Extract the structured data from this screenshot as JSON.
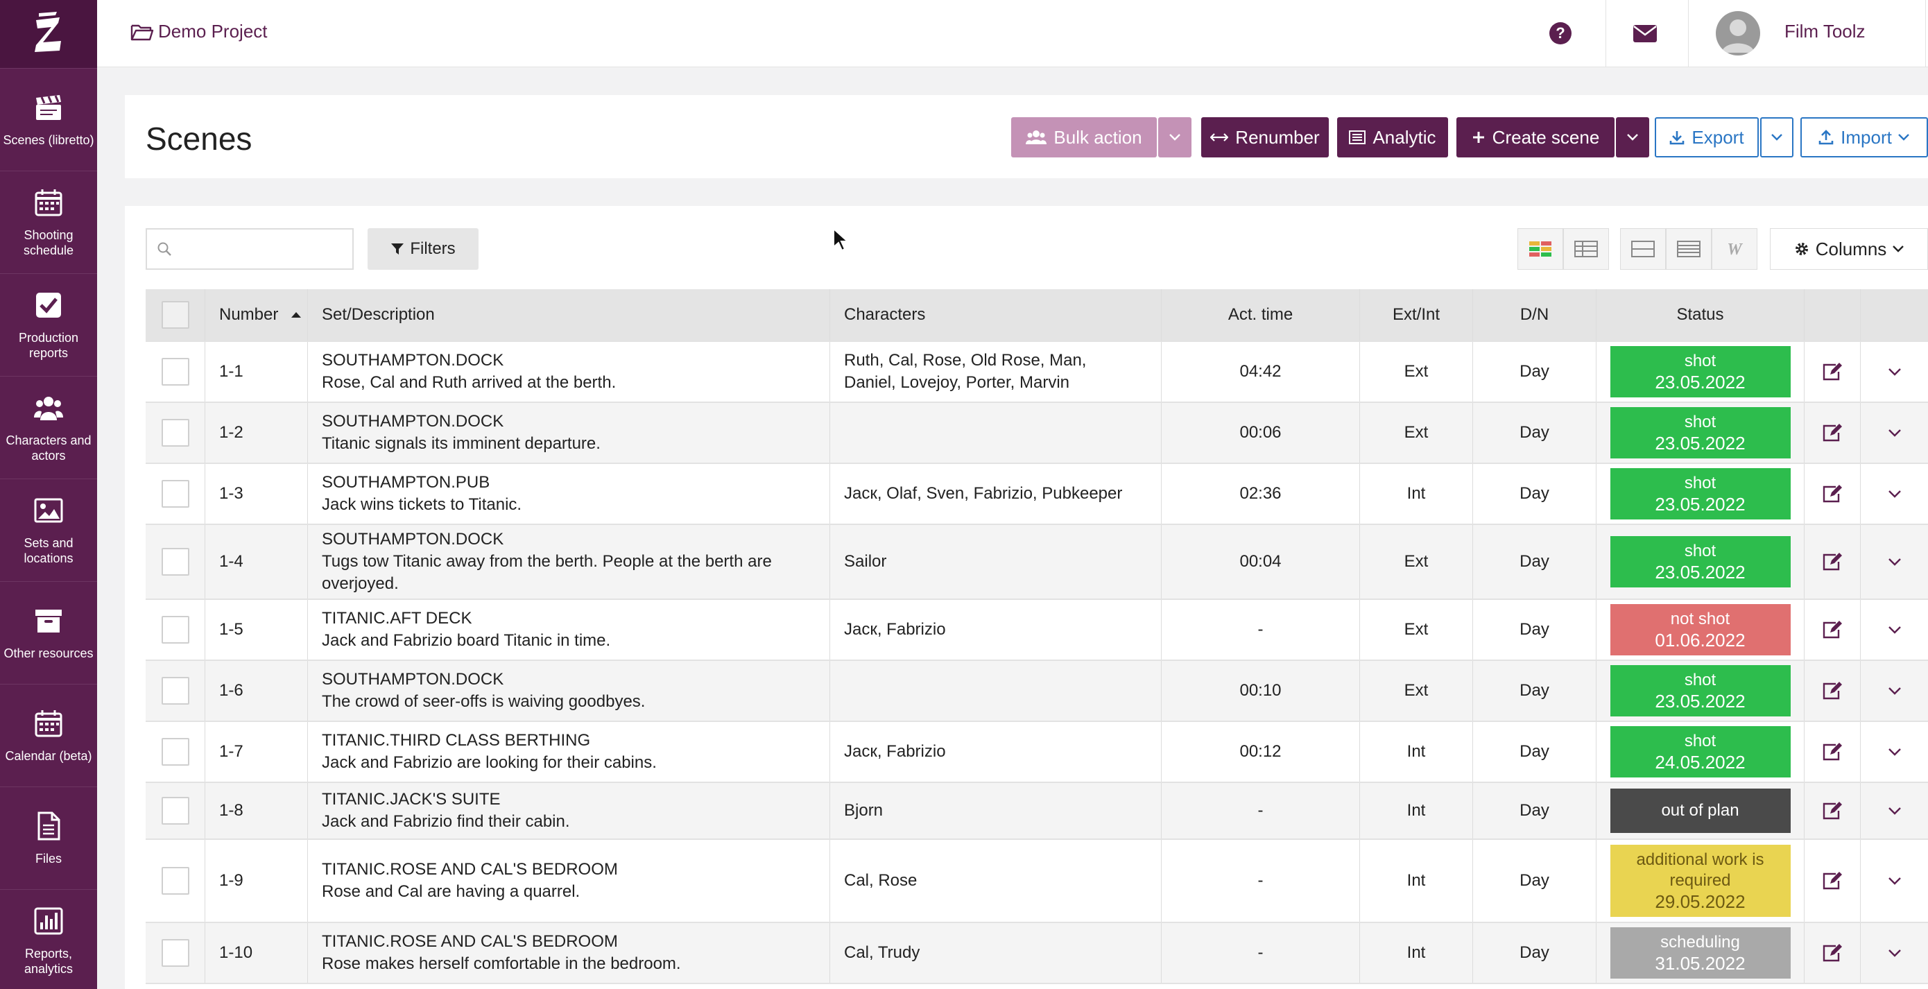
{
  "app": {
    "project_name": "Demo Project",
    "user_name": "Film Toolz",
    "accent": "#5b1f4f"
  },
  "sidebar": {
    "items": [
      {
        "label": "Scenes (libretto)",
        "icon": "clapperboard-icon"
      },
      {
        "label": "Shooting schedule",
        "icon": "calendar-icon"
      },
      {
        "label": "Production reports",
        "icon": "checkbox-icon"
      },
      {
        "label": "Characters and actors",
        "icon": "users-icon"
      },
      {
        "label": "Sets and locations",
        "icon": "image-icon"
      },
      {
        "label": "Other resources",
        "icon": "archive-icon"
      },
      {
        "label": "Calendar (beta)",
        "icon": "calendar-icon"
      },
      {
        "label": "Files",
        "icon": "file-icon"
      },
      {
        "label": "Reports, analytics",
        "icon": "bar-chart-icon"
      }
    ]
  },
  "page": {
    "title": "Scenes",
    "buttons": {
      "bulk_action": "Bulk action",
      "renumber": "Renumber",
      "analytic": "Analytic",
      "create_scene": "Create scene",
      "export": "Export",
      "import": "Import"
    },
    "search_placeholder": "",
    "filters_label": "Filters",
    "columns_label": "Columns"
  },
  "table": {
    "headers": {
      "number": "Number",
      "set": "Set/Description",
      "characters": "Characters",
      "act_time": "Act. time",
      "ext_int": "Ext/Int",
      "dn": "D/N",
      "status": "Status"
    },
    "rows": [
      {
        "number": "1-1",
        "set": "SOUTHAMPTON.DOCK",
        "desc": "Rose, Cal and Ruth arrived at the berth.",
        "characters": "Ruth, Cal, Rose, Old Rose, Man, Daniel, Lovejoy, Porter, Marvin",
        "time": "04:42",
        "ext": "Ext",
        "dn": "Day",
        "status": "shot",
        "date": "23.05.2022",
        "kind": "shot"
      },
      {
        "number": "1-2",
        "set": "SOUTHAMPTON.DOCK",
        "desc": "Titanic signals its imminent departure.",
        "characters": "",
        "time": "00:06",
        "ext": "Ext",
        "dn": "Day",
        "status": "shot",
        "date": "23.05.2022",
        "kind": "shot"
      },
      {
        "number": "1-3",
        "set": "SOUTHAMPTON.PUB",
        "desc": "Jack wins tickets to Titanic.",
        "characters": "Jacк, Olaf, Sven, Fabrizio, Pubkeeper",
        "time": "02:36",
        "ext": "Int",
        "dn": "Day",
        "status": "shot",
        "date": "23.05.2022",
        "kind": "shot"
      },
      {
        "number": "1-4",
        "set": "SOUTHAMPTON.DOCK",
        "desc": "Tugs tow Titanic away from the berth. People at the berth are overjoyed.",
        "characters": "Sailor",
        "time": "00:04",
        "ext": "Ext",
        "dn": "Day",
        "status": "shot",
        "date": "23.05.2022",
        "kind": "shot"
      },
      {
        "number": "1-5",
        "set": "TITANIC.AFT DECK",
        "desc": "Jack and Fabrizio board Titanic in time.",
        "characters": "Jacк, Fabrizio",
        "time": "-",
        "ext": "Ext",
        "dn": "Day",
        "status": "not shot",
        "date": "01.06.2022",
        "kind": "notshot"
      },
      {
        "number": "1-6",
        "set": "SOUTHAMPTON.DOCK",
        "desc": "The crowd of seer-offs is waiving goodbyes.",
        "characters": "",
        "time": "00:10",
        "ext": "Ext",
        "dn": "Day",
        "status": "shot",
        "date": "23.05.2022",
        "kind": "shot"
      },
      {
        "number": "1-7",
        "set": "TITANIC.THIRD CLASS BERTHING",
        "desc": "Jack and Fabrizio are looking for their cabins.",
        "characters": "Jacк, Fabrizio",
        "time": "00:12",
        "ext": "Int",
        "dn": "Day",
        "status": "shot",
        "date": "24.05.2022",
        "kind": "shot"
      },
      {
        "number": "1-8",
        "set": "TITANIC.JACK'S SUITE",
        "desc": "Jack and Fabrizio find their cabin.",
        "characters": "Bjorn",
        "time": "-",
        "ext": "Int",
        "dn": "Day",
        "status": "out of plan",
        "date": "",
        "kind": "out"
      },
      {
        "number": "1-9",
        "set": "TITANIC.ROSE AND CAL'S BEDROOM",
        "desc": "Rose and Cal are having a quarrel.",
        "characters": "Cal, Rose",
        "time": "-",
        "ext": "Int",
        "dn": "Day",
        "status": "additional work is required",
        "date": "29.05.2022",
        "kind": "add"
      },
      {
        "number": "1-10",
        "set": "TITANIC.ROSE AND CAL'S BEDROOM",
        "desc": "Rose makes herself comfortable in the bedroom.",
        "characters": "Cal, Trudy",
        "time": "-",
        "ext": "Int",
        "dn": "Day",
        "status": "scheduling",
        "date": "31.05.2022",
        "kind": "sched"
      }
    ]
  }
}
